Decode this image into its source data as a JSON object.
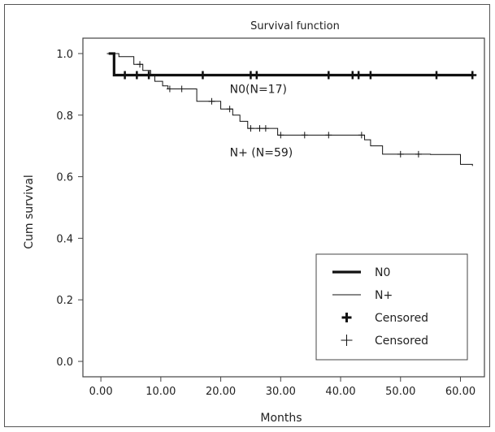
{
  "chart_data": {
    "type": "line",
    "title": "Survival function",
    "xlabel": "Months",
    "ylabel": "Cum survival",
    "xlim": [
      -3,
      64
    ],
    "ylim": [
      -0.05,
      1.05
    ],
    "xticks": [
      "0.00",
      "10.00",
      "20.00",
      "30.00",
      "40.00",
      "50.00",
      "60.00"
    ],
    "xtick_values": [
      0,
      10,
      20,
      30,
      40,
      50,
      60
    ],
    "yticks": [
      "0.0",
      "0.2",
      "0.4",
      "0.6",
      "0.8",
      "1.0"
    ],
    "ytick_values": [
      0,
      0.2,
      0.4,
      0.6,
      0.8,
      1.0
    ],
    "grid": false,
    "legend_position": "bottom-right",
    "legend": [
      {
        "label": "N0",
        "kind": "thick-line"
      },
      {
        "label": "N+",
        "kind": "thin-line"
      },
      {
        "label": "Censored",
        "kind": "thick-cross"
      },
      {
        "label": "Censored",
        "kind": "thin-cross"
      }
    ],
    "annotations": [
      {
        "text": "N0(N=17)",
        "x": 21.5,
        "y": 0.885
      },
      {
        "text": "N+ (N=59)",
        "x": 21.5,
        "y": 0.68
      }
    ],
    "series": [
      {
        "name": "N0",
        "style": "thick",
        "steps": [
          [
            1.3,
            1.0
          ],
          [
            2.2,
            0.93
          ],
          [
            62,
            0.93
          ]
        ],
        "censored_x": [
          4,
          6,
          8,
          17,
          25,
          26,
          38,
          42,
          43,
          45,
          56,
          62
        ]
      },
      {
        "name": "N+",
        "style": "thin",
        "steps": [
          [
            1.0,
            1.0
          ],
          [
            3.0,
            0.99
          ],
          [
            5.5,
            0.965
          ],
          [
            7.0,
            0.945
          ],
          [
            8.3,
            0.93
          ],
          [
            9.0,
            0.91
          ],
          [
            10.3,
            0.895
          ],
          [
            11.2,
            0.885
          ],
          [
            16.0,
            0.845
          ],
          [
            20.0,
            0.82
          ],
          [
            22.0,
            0.8
          ],
          [
            23.2,
            0.78
          ],
          [
            24.5,
            0.757
          ],
          [
            29.5,
            0.735
          ],
          [
            44.0,
            0.72
          ],
          [
            45.0,
            0.7
          ],
          [
            47.0,
            0.673
          ],
          [
            55.0,
            0.672
          ],
          [
            60.0,
            0.64
          ],
          [
            62,
            0.635
          ]
        ],
        "censored_x": [
          6.5,
          11.5,
          13.5,
          18.5,
          21.5,
          25,
          26.5,
          27.5,
          30,
          34,
          38,
          43.5,
          50,
          53
        ]
      }
    ]
  }
}
